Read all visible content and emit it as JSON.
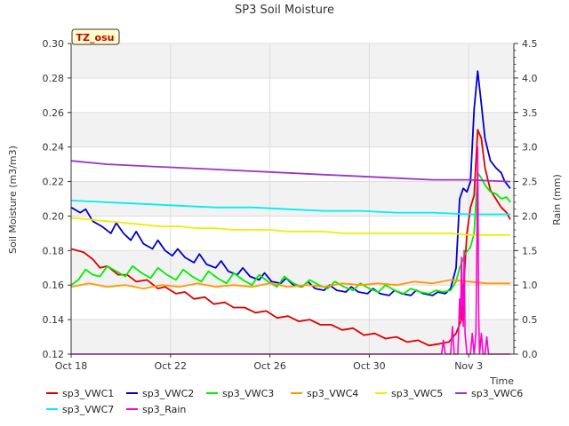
{
  "chart_data": {
    "type": "line",
    "title": "SP3 Soil Moisture",
    "xlabel": "Time",
    "ylabel": "Soil Moisture (m3/m3)",
    "y2label": "Rain (mm)",
    "ylim": [
      0.12,
      0.3
    ],
    "y2lim": [
      0,
      4.5
    ],
    "xlim": [
      0,
      24.5
    ],
    "x_unit": "days since Oct 18",
    "x_ticks": [
      {
        "x": 0,
        "label": "Oct 18"
      },
      {
        "x": 5.5,
        "label": "Oct 22"
      },
      {
        "x": 11,
        "label": "Oct 26"
      },
      {
        "x": 16.5,
        "label": "Oct 30"
      },
      {
        "x": 22,
        "label": "Nov 3"
      }
    ],
    "y_ticks": [
      "0.12",
      "0.14",
      "0.16",
      "0.18",
      "0.20",
      "0.22",
      "0.24",
      "0.26",
      "0.28",
      "0.30"
    ],
    "y2_ticks": [
      "0.0",
      "0.5",
      "1.0",
      "1.5",
      "2.0",
      "2.5",
      "3.0",
      "3.5",
      "4.0",
      "4.5"
    ],
    "badge": "TZ_osu",
    "grid": true,
    "legend_position": "bottom",
    "series": [
      {
        "name": "sp3_VWC1",
        "color": "#dd0000",
        "axis": "left",
        "points": [
          [
            0,
            0.181
          ],
          [
            0.7,
            0.179
          ],
          [
            1.2,
            0.175
          ],
          [
            1.6,
            0.17
          ],
          [
            2.0,
            0.171
          ],
          [
            2.6,
            0.166
          ],
          [
            3.1,
            0.166
          ],
          [
            3.6,
            0.162
          ],
          [
            4.2,
            0.163
          ],
          [
            4.8,
            0.158
          ],
          [
            5.2,
            0.159
          ],
          [
            5.8,
            0.155
          ],
          [
            6.3,
            0.156
          ],
          [
            6.8,
            0.152
          ],
          [
            7.4,
            0.153
          ],
          [
            7.9,
            0.149
          ],
          [
            8.5,
            0.15
          ],
          [
            9.0,
            0.147
          ],
          [
            9.6,
            0.147
          ],
          [
            10.2,
            0.144
          ],
          [
            10.8,
            0.145
          ],
          [
            11.4,
            0.141
          ],
          [
            12.0,
            0.142
          ],
          [
            12.6,
            0.139
          ],
          [
            13.2,
            0.14
          ],
          [
            13.8,
            0.137
          ],
          [
            14.4,
            0.137
          ],
          [
            15.0,
            0.134
          ],
          [
            15.6,
            0.135
          ],
          [
            16.2,
            0.131
          ],
          [
            16.8,
            0.132
          ],
          [
            17.4,
            0.129
          ],
          [
            18.0,
            0.13
          ],
          [
            18.6,
            0.127
          ],
          [
            19.2,
            0.128
          ],
          [
            19.8,
            0.125
          ],
          [
            20.4,
            0.126
          ],
          [
            20.9,
            0.127
          ],
          [
            21.3,
            0.132
          ],
          [
            21.6,
            0.14
          ],
          [
            21.9,
            0.19
          ],
          [
            22.1,
            0.205
          ],
          [
            22.3,
            0.212
          ],
          [
            22.5,
            0.25
          ],
          [
            22.7,
            0.245
          ],
          [
            22.9,
            0.228
          ],
          [
            23.2,
            0.215
          ],
          [
            23.5,
            0.21
          ],
          [
            23.8,
            0.205
          ],
          [
            24.1,
            0.202
          ],
          [
            24.3,
            0.198
          ]
        ]
      },
      {
        "name": "sp3_VWC2",
        "color": "#0000cc",
        "axis": "left",
        "points": [
          [
            0,
            0.205
          ],
          [
            0.5,
            0.202
          ],
          [
            0.8,
            0.204
          ],
          [
            1.2,
            0.197
          ],
          [
            1.7,
            0.194
          ],
          [
            2.2,
            0.19
          ],
          [
            2.5,
            0.196
          ],
          [
            2.9,
            0.19
          ],
          [
            3.3,
            0.186
          ],
          [
            3.6,
            0.191
          ],
          [
            4.0,
            0.184
          ],
          [
            4.5,
            0.181
          ],
          [
            4.8,
            0.186
          ],
          [
            5.2,
            0.18
          ],
          [
            5.6,
            0.177
          ],
          [
            5.9,
            0.181
          ],
          [
            6.3,
            0.176
          ],
          [
            6.8,
            0.173
          ],
          [
            7.1,
            0.178
          ],
          [
            7.5,
            0.172
          ],
          [
            8.0,
            0.17
          ],
          [
            8.3,
            0.174
          ],
          [
            8.7,
            0.168
          ],
          [
            9.2,
            0.166
          ],
          [
            9.5,
            0.17
          ],
          [
            9.9,
            0.165
          ],
          [
            10.4,
            0.163
          ],
          [
            10.7,
            0.167
          ],
          [
            11.1,
            0.162
          ],
          [
            11.6,
            0.161
          ],
          [
            11.9,
            0.164
          ],
          [
            12.3,
            0.16
          ],
          [
            12.8,
            0.159
          ],
          [
            13.1,
            0.162
          ],
          [
            13.5,
            0.158
          ],
          [
            14.0,
            0.157
          ],
          [
            14.3,
            0.16
          ],
          [
            14.7,
            0.157
          ],
          [
            15.2,
            0.156
          ],
          [
            15.5,
            0.159
          ],
          [
            15.9,
            0.156
          ],
          [
            16.4,
            0.155
          ],
          [
            16.7,
            0.158
          ],
          [
            17.1,
            0.155
          ],
          [
            17.6,
            0.154
          ],
          [
            17.9,
            0.157
          ],
          [
            18.3,
            0.155
          ],
          [
            18.8,
            0.154
          ],
          [
            19.1,
            0.157
          ],
          [
            19.5,
            0.155
          ],
          [
            20.0,
            0.154
          ],
          [
            20.3,
            0.156
          ],
          [
            20.7,
            0.155
          ],
          [
            21.0,
            0.158
          ],
          [
            21.3,
            0.17
          ],
          [
            21.5,
            0.21
          ],
          [
            21.7,
            0.216
          ],
          [
            21.9,
            0.214
          ],
          [
            22.1,
            0.22
          ],
          [
            22.3,
            0.262
          ],
          [
            22.5,
            0.284
          ],
          [
            22.7,
            0.265
          ],
          [
            22.9,
            0.245
          ],
          [
            23.2,
            0.232
          ],
          [
            23.5,
            0.228
          ],
          [
            23.8,
            0.225
          ],
          [
            24.0,
            0.22
          ],
          [
            24.3,
            0.216
          ]
        ]
      },
      {
        "name": "sp3_VWC3",
        "color": "#00ee00",
        "axis": "left",
        "points": [
          [
            0,
            0.16
          ],
          [
            0.4,
            0.163
          ],
          [
            0.8,
            0.169
          ],
          [
            1.2,
            0.166
          ],
          [
            1.6,
            0.165
          ],
          [
            2.0,
            0.171
          ],
          [
            2.5,
            0.168
          ],
          [
            3.0,
            0.165
          ],
          [
            3.4,
            0.171
          ],
          [
            3.9,
            0.167
          ],
          [
            4.4,
            0.164
          ],
          [
            4.8,
            0.17
          ],
          [
            5.3,
            0.166
          ],
          [
            5.8,
            0.163
          ],
          [
            6.2,
            0.169
          ],
          [
            6.7,
            0.165
          ],
          [
            7.2,
            0.162
          ],
          [
            7.6,
            0.168
          ],
          [
            8.1,
            0.164
          ],
          [
            8.6,
            0.161
          ],
          [
            9.0,
            0.167
          ],
          [
            9.5,
            0.163
          ],
          [
            10.0,
            0.16
          ],
          [
            10.4,
            0.166
          ],
          [
            10.9,
            0.162
          ],
          [
            11.4,
            0.159
          ],
          [
            11.8,
            0.165
          ],
          [
            12.3,
            0.161
          ],
          [
            12.8,
            0.159
          ],
          [
            13.2,
            0.163
          ],
          [
            13.7,
            0.16
          ],
          [
            14.2,
            0.158
          ],
          [
            14.6,
            0.162
          ],
          [
            15.1,
            0.159
          ],
          [
            15.6,
            0.157
          ],
          [
            16.0,
            0.161
          ],
          [
            16.5,
            0.158
          ],
          [
            17.0,
            0.156
          ],
          [
            17.4,
            0.16
          ],
          [
            17.9,
            0.157
          ],
          [
            18.4,
            0.155
          ],
          [
            18.8,
            0.158
          ],
          [
            19.3,
            0.156
          ],
          [
            19.8,
            0.155
          ],
          [
            20.2,
            0.157
          ],
          [
            20.6,
            0.156
          ],
          [
            21.0,
            0.157
          ],
          [
            21.3,
            0.162
          ],
          [
            21.5,
            0.17
          ],
          [
            21.8,
            0.178
          ],
          [
            22.1,
            0.182
          ],
          [
            22.3,
            0.19
          ],
          [
            22.5,
            0.225
          ],
          [
            22.7,
            0.222
          ],
          [
            22.9,
            0.218
          ],
          [
            23.2,
            0.214
          ],
          [
            23.5,
            0.213
          ],
          [
            23.8,
            0.21
          ],
          [
            24.1,
            0.211
          ],
          [
            24.3,
            0.208
          ]
        ]
      },
      {
        "name": "sp3_VWC4",
        "color": "#ff9900",
        "axis": "left",
        "points": [
          [
            0,
            0.159
          ],
          [
            1.0,
            0.161
          ],
          [
            2.0,
            0.159
          ],
          [
            3.0,
            0.16
          ],
          [
            4.0,
            0.158
          ],
          [
            5.0,
            0.16
          ],
          [
            6.0,
            0.159
          ],
          [
            7.0,
            0.161
          ],
          [
            8.0,
            0.159
          ],
          [
            9.0,
            0.16
          ],
          [
            10.0,
            0.159
          ],
          [
            11.0,
            0.161
          ],
          [
            12.0,
            0.159
          ],
          [
            13.0,
            0.16
          ],
          [
            14.0,
            0.159
          ],
          [
            15.0,
            0.161
          ],
          [
            16.0,
            0.16
          ],
          [
            17.0,
            0.161
          ],
          [
            18.0,
            0.16
          ],
          [
            19.0,
            0.162
          ],
          [
            20.0,
            0.161
          ],
          [
            21.0,
            0.163
          ],
          [
            22.0,
            0.162
          ],
          [
            23.0,
            0.161
          ],
          [
            24.3,
            0.161
          ]
        ]
      },
      {
        "name": "sp3_VWC5",
        "color": "#eeee00",
        "axis": "left",
        "points": [
          [
            0,
            0.199
          ],
          [
            1.0,
            0.198
          ],
          [
            2.0,
            0.197
          ],
          [
            3.0,
            0.196
          ],
          [
            4.0,
            0.195
          ],
          [
            5.0,
            0.194
          ],
          [
            6.0,
            0.194
          ],
          [
            7.0,
            0.193
          ],
          [
            8.0,
            0.193
          ],
          [
            9.0,
            0.192
          ],
          [
            10.0,
            0.192
          ],
          [
            11.0,
            0.192
          ],
          [
            12.0,
            0.191
          ],
          [
            13.0,
            0.191
          ],
          [
            14.0,
            0.191
          ],
          [
            15.0,
            0.19
          ],
          [
            16.0,
            0.19
          ],
          [
            17.0,
            0.19
          ],
          [
            18.0,
            0.19
          ],
          [
            19.0,
            0.19
          ],
          [
            20.0,
            0.19
          ],
          [
            21.0,
            0.19
          ],
          [
            22.0,
            0.189
          ],
          [
            23.0,
            0.189
          ],
          [
            24.3,
            0.189
          ]
        ]
      },
      {
        "name": "sp3_VWC6",
        "color": "#9933cc",
        "axis": "left",
        "points": [
          [
            0,
            0.232
          ],
          [
            2.0,
            0.23
          ],
          [
            4.0,
            0.229
          ],
          [
            6.0,
            0.228
          ],
          [
            8.0,
            0.227
          ],
          [
            10.0,
            0.226
          ],
          [
            12.0,
            0.225
          ],
          [
            14.0,
            0.224
          ],
          [
            16.0,
            0.223
          ],
          [
            18.0,
            0.222
          ],
          [
            20.0,
            0.221
          ],
          [
            22.0,
            0.221
          ],
          [
            24.3,
            0.22
          ]
        ]
      },
      {
        "name": "sp3_VWC7",
        "color": "#00eeee",
        "axis": "left",
        "points": [
          [
            0,
            0.209
          ],
          [
            2.0,
            0.208
          ],
          [
            4.0,
            0.207
          ],
          [
            6.0,
            0.206
          ],
          [
            8.0,
            0.205
          ],
          [
            10.0,
            0.205
          ],
          [
            12.0,
            0.204
          ],
          [
            14.0,
            0.203
          ],
          [
            16.0,
            0.203
          ],
          [
            18.0,
            0.202
          ],
          [
            20.0,
            0.202
          ],
          [
            22.0,
            0.201
          ],
          [
            24.3,
            0.201
          ]
        ]
      },
      {
        "name": "sp3_Rain",
        "color": "#ff00cc",
        "axis": "right",
        "points": [
          [
            0,
            0
          ],
          [
            20.5,
            0
          ],
          [
            20.6,
            0.2
          ],
          [
            20.7,
            0
          ],
          [
            21.0,
            0
          ],
          [
            21.1,
            0.4
          ],
          [
            21.2,
            0
          ],
          [
            21.4,
            0
          ],
          [
            21.5,
            0.8
          ],
          [
            21.55,
            0.5
          ],
          [
            21.6,
            1.4
          ],
          [
            21.65,
            0.7
          ],
          [
            21.7,
            0.4
          ],
          [
            21.75,
            1.5
          ],
          [
            21.8,
            0.3
          ],
          [
            21.9,
            0
          ],
          [
            22.1,
            0
          ],
          [
            22.2,
            0.3
          ],
          [
            22.3,
            0
          ],
          [
            22.4,
            0.3
          ],
          [
            22.45,
            1.5
          ],
          [
            22.5,
            3.0
          ],
          [
            22.55,
            0.6
          ],
          [
            22.6,
            0
          ],
          [
            22.7,
            0.3
          ],
          [
            22.8,
            0
          ],
          [
            22.9,
            0
          ],
          [
            23.0,
            0.25
          ],
          [
            23.1,
            0
          ],
          [
            24.3,
            0
          ]
        ]
      }
    ]
  }
}
